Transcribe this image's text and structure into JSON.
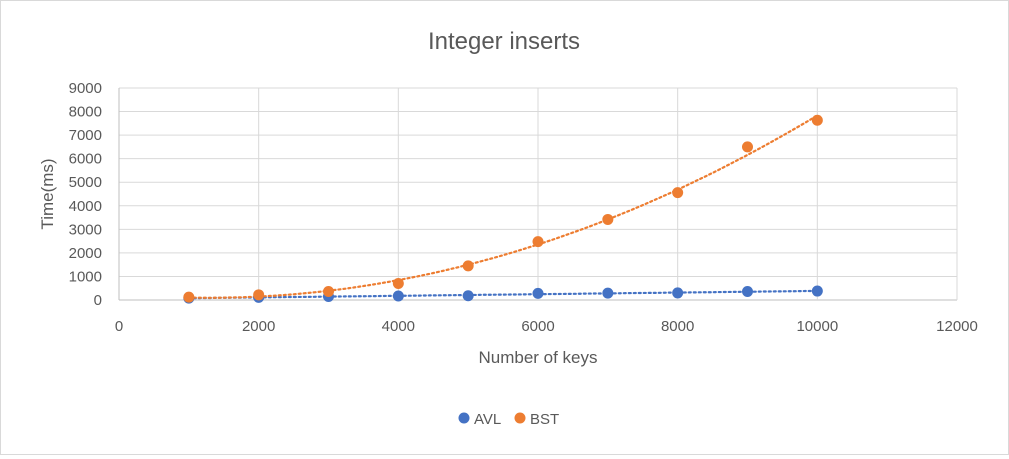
{
  "chart_data": {
    "type": "scatter",
    "title": "Integer inserts",
    "xlabel": "Number of keys",
    "ylabel": "Time(ms)",
    "xlim": [
      0,
      12000
    ],
    "ylim": [
      0,
      9000
    ],
    "x_ticks": [
      0,
      2000,
      4000,
      6000,
      8000,
      10000,
      12000
    ],
    "y_ticks": [
      0,
      1000,
      2000,
      3000,
      4000,
      5000,
      6000,
      7000,
      8000,
      9000
    ],
    "grid": true,
    "legend_position": "bottom",
    "trendline": "polynomial-dotted",
    "series": [
      {
        "name": "AVL",
        "color": "#4472C4",
        "x": [
          1000,
          2000,
          3000,
          4000,
          5000,
          6000,
          7000,
          8000,
          9000,
          10000
        ],
        "y": [
          80,
          110,
          150,
          170,
          180,
          280,
          290,
          300,
          360,
          380
        ]
      },
      {
        "name": "BST",
        "color": "#ED7D31",
        "x": [
          1000,
          2000,
          3000,
          4000,
          5000,
          6000,
          7000,
          8000,
          9000,
          10000
        ],
        "y": [
          120,
          220,
          360,
          700,
          1450,
          2480,
          3420,
          4560,
          6500,
          7630
        ]
      }
    ]
  }
}
